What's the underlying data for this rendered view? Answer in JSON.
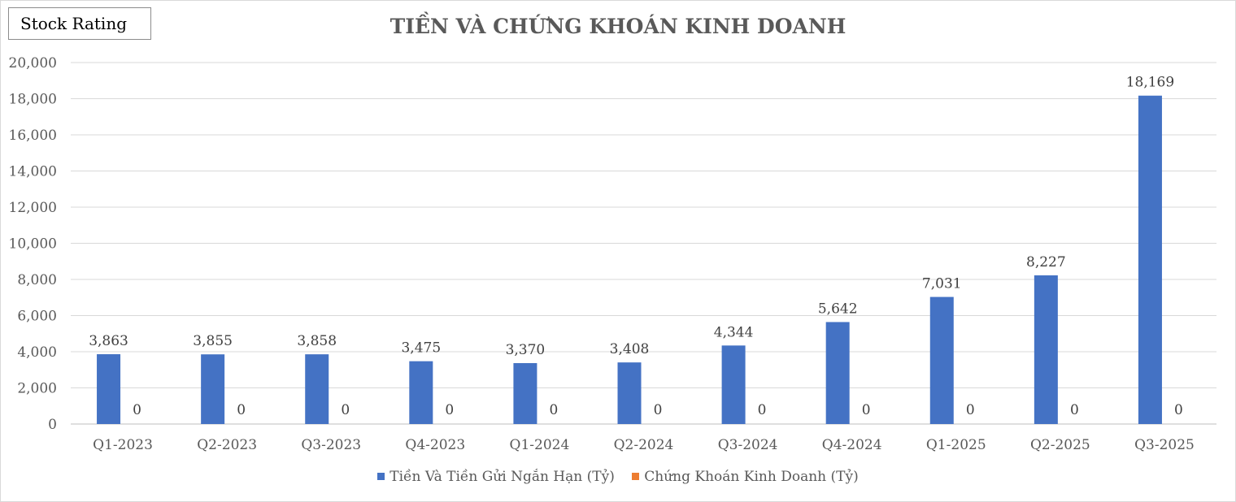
{
  "badge": "Stock Rating",
  "chart_data": {
    "type": "bar",
    "title": "TIỀN VÀ CHỨNG KHOÁN KINH DOANH",
    "categories": [
      "Q1-2023",
      "Q2-2023",
      "Q3-2023",
      "Q4-2023",
      "Q1-2024",
      "Q2-2024",
      "Q3-2024",
      "Q4-2024",
      "Q1-2025",
      "Q2-2025",
      "Q3-2025"
    ],
    "series": [
      {
        "name": "Tiền Và Tiền Gửi Ngắn Hạn (Tỷ)",
        "color": "#4472c4",
        "values": [
          3863,
          3855,
          3858,
          3475,
          3370,
          3408,
          4344,
          5642,
          7031,
          8227,
          18169
        ],
        "labels": [
          "3,863",
          "3,855",
          "3,858",
          "3,475",
          "3,370",
          "3,408",
          "4,344",
          "5,642",
          "7,031",
          "8,227",
          "18,169"
        ]
      },
      {
        "name": "Chứng Khoán Kinh Doanh (Tỷ)",
        "color": "#ed7d31",
        "values": [
          0,
          0,
          0,
          0,
          0,
          0,
          0,
          0,
          0,
          0,
          0
        ],
        "labels": [
          "0",
          "0",
          "0",
          "0",
          "0",
          "0",
          "0",
          "0",
          "0",
          "0",
          "0"
        ]
      }
    ],
    "ylim": [
      0,
      20000
    ],
    "yticks": [
      "0",
      "2,000",
      "4,000",
      "6,000",
      "8,000",
      "10,000",
      "12,000",
      "14,000",
      "16,000",
      "18,000",
      "20,000"
    ],
    "grid": true,
    "legend": "bottom"
  }
}
